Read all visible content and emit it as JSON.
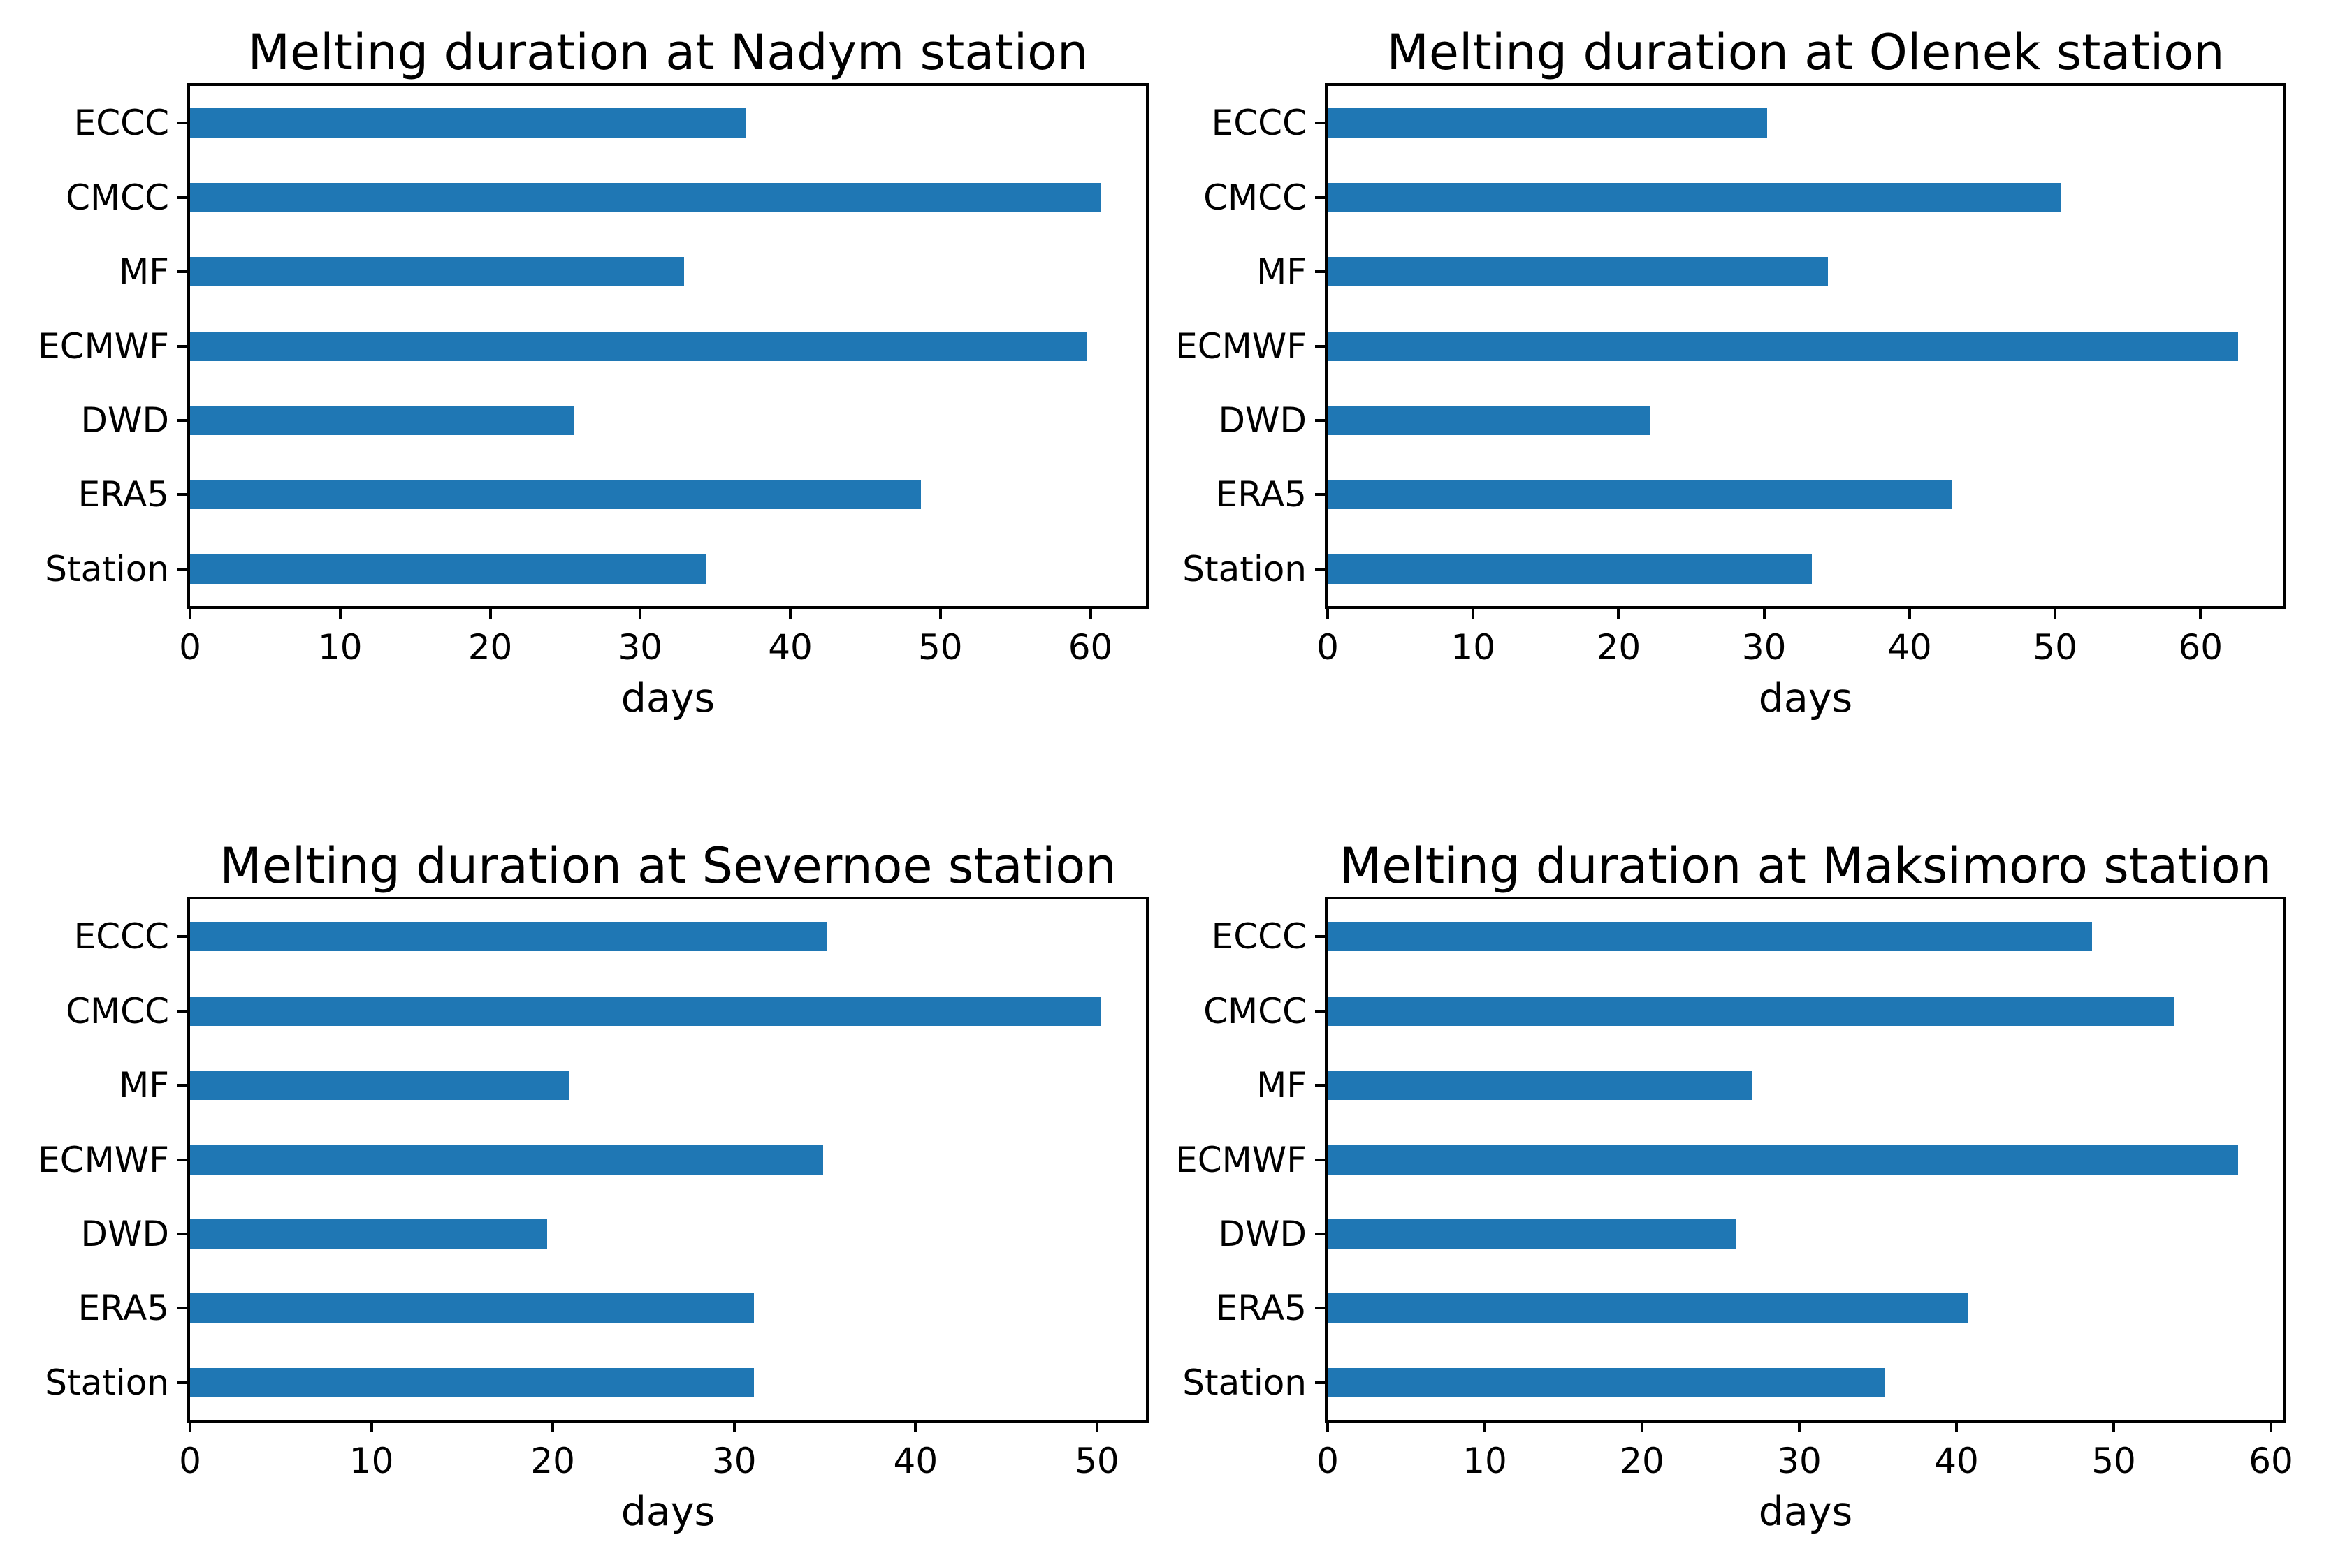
{
  "figure": {
    "background": "#ffffff",
    "text_color": "#000000"
  },
  "colors": {
    "bar": "#1f77b4",
    "axis": "#000000"
  },
  "chart_data": [
    {
      "type": "bar",
      "orientation": "horizontal",
      "title": "Melting duration at Nadym station",
      "xlabel": "days",
      "categories": [
        "ECCC",
        "CMCC",
        "MF",
        "ECMWF",
        "DWD",
        "ERA5",
        "Station"
      ],
      "values": [
        37.0,
        60.7,
        32.9,
        59.8,
        25.6,
        48.7,
        34.4
      ],
      "xticks": [
        0,
        10,
        20,
        30,
        40,
        50,
        60
      ],
      "xlim": [
        0,
        63.7
      ],
      "grid": false,
      "legend": "none",
      "bar_color": "#1f77b4"
    },
    {
      "type": "bar",
      "orientation": "horizontal",
      "title": "Melting duration at Olenek station",
      "xlabel": "days",
      "categories": [
        "ECCC",
        "CMCC",
        "MF",
        "ECMWF",
        "DWD",
        "ERA5",
        "Station"
      ],
      "values": [
        30.2,
        50.4,
        34.4,
        62.6,
        22.2,
        42.9,
        33.3
      ],
      "xticks": [
        0,
        10,
        20,
        30,
        40,
        50,
        60
      ],
      "xlim": [
        0,
        65.7
      ],
      "grid": false,
      "legend": "none",
      "bar_color": "#1f77b4"
    },
    {
      "type": "bar",
      "orientation": "horizontal",
      "title": "Melting duration at Severnoe station",
      "xlabel": "days",
      "categories": [
        "ECCC",
        "CMCC",
        "MF",
        "ECMWF",
        "DWD",
        "ERA5",
        "Station"
      ],
      "values": [
        35.1,
        50.2,
        20.9,
        34.9,
        19.7,
        31.1,
        31.1
      ],
      "xticks": [
        0,
        10,
        20,
        30,
        40,
        50
      ],
      "xlim": [
        0,
        52.7
      ],
      "grid": false,
      "legend": "none",
      "bar_color": "#1f77b4"
    },
    {
      "type": "bar",
      "orientation": "horizontal",
      "title": "Melting duration at Maksimoro station",
      "xlabel": "days",
      "categories": [
        "ECCC",
        "CMCC",
        "MF",
        "ECMWF",
        "DWD",
        "ERA5",
        "Station"
      ],
      "values": [
        48.6,
        53.8,
        27.0,
        57.9,
        26.0,
        40.7,
        35.4
      ],
      "xticks": [
        0,
        10,
        20,
        30,
        40,
        50,
        60
      ],
      "xlim": [
        0,
        60.8
      ],
      "grid": false,
      "legend": "none",
      "bar_color": "#1f77b4"
    }
  ]
}
